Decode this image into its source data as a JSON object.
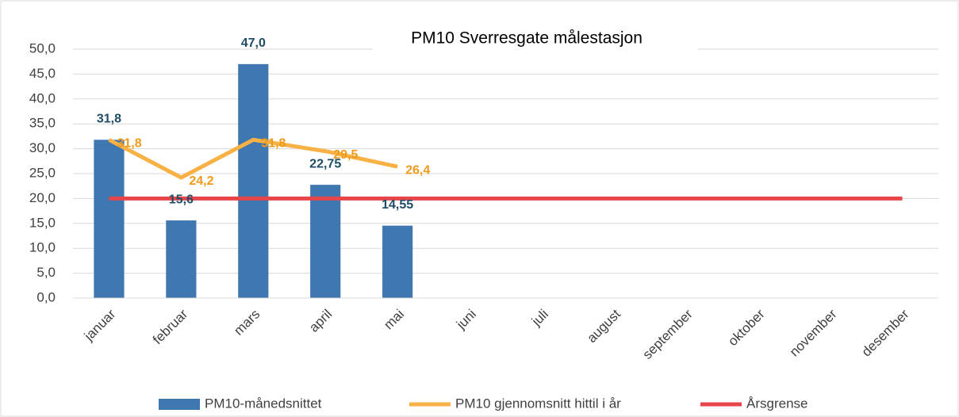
{
  "chart_data": {
    "type": "bar_line",
    "title": "PM10 Sverresgate målestasjon",
    "categories": [
      "januar",
      "februar",
      "mars",
      "april",
      "mai",
      "juni",
      "juli",
      "august",
      "september",
      "oktober",
      "november",
      "desember"
    ],
    "series": [
      {
        "name": "PM10-månedsnittet",
        "type": "bar",
        "color": "#3f78b1",
        "label_color": "#1e4d66",
        "values": [
          31.8,
          15.6,
          47.0,
          22.75,
          14.55,
          null,
          null,
          null,
          null,
          null,
          null,
          null
        ],
        "value_labels": [
          "31,8",
          "15,6",
          "47,0",
          "22,75",
          "14,55",
          null,
          null,
          null,
          null,
          null,
          null,
          null
        ]
      },
      {
        "name": "PM10 gjennomsnitt hittil i år",
        "type": "line",
        "color": "#f8b144",
        "label_color": "#f09a1a",
        "values": [
          31.8,
          24.2,
          31.8,
          29.5,
          26.4,
          null,
          null,
          null,
          null,
          null,
          null,
          null
        ],
        "value_labels": [
          "31,8",
          "24,2",
          "31,8",
          "29,5",
          "26,4",
          null,
          null,
          null,
          null,
          null,
          null,
          null
        ]
      },
      {
        "name": "Årsgrense",
        "type": "line",
        "color": "#e8454b",
        "values": [
          20,
          20,
          20,
          20,
          20,
          20,
          20,
          20,
          20,
          20,
          20,
          20
        ]
      }
    ],
    "ylim": [
      0,
      50
    ],
    "yticks": [
      {
        "value": 0,
        "label": "0,0"
      },
      {
        "value": 5,
        "label": "5,0"
      },
      {
        "value": 10,
        "label": "10,0"
      },
      {
        "value": 15,
        "label": "15,0"
      },
      {
        "value": 20,
        "label": "20,0"
      },
      {
        "value": 25,
        "label": "25,0"
      },
      {
        "value": 30,
        "label": "30,0"
      },
      {
        "value": 35,
        "label": "35,0"
      },
      {
        "value": 40,
        "label": "40,0"
      },
      {
        "value": 45,
        "label": "45,0"
      },
      {
        "value": 50,
        "label": "50,0"
      }
    ],
    "grid": true
  }
}
